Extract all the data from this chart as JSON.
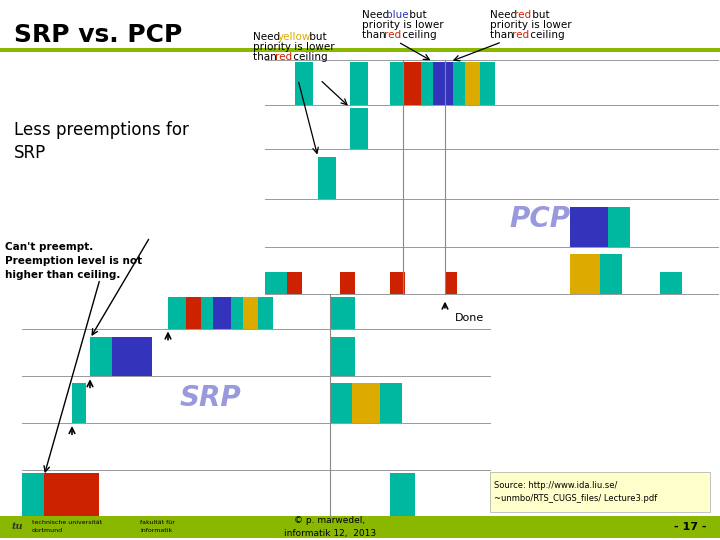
{
  "title": "SRP vs. PCP",
  "subtitle_left": "Less preemptions for\nSRP",
  "bg_color": "#ffffff",
  "footer_bar_color": "#8ab800",
  "footer_text": "© p. marwedel,\ninformatik 12,  2013",
  "page_number": "- 17 -",
  "source_text": "Source: http://www.ida.liu.se/\n~unmbo/RTS_CUGS_files/ Lecture3.pdf",
  "pcp_label": "PCP",
  "srp_label": "SRP",
  "teal": "#00b8a0",
  "red": "#cc2200",
  "blue": "#3333bb",
  "purple": "#6633cc",
  "yellow": "#ddaa00",
  "olive": "#8ab800",
  "cant_preempt_text": "Can't preempt.\nPreemption level is not\nhigher than ceiling.",
  "done_text": "Done",
  "top_bar_color": "#8ab800",
  "source_bg": "#ffffcc"
}
